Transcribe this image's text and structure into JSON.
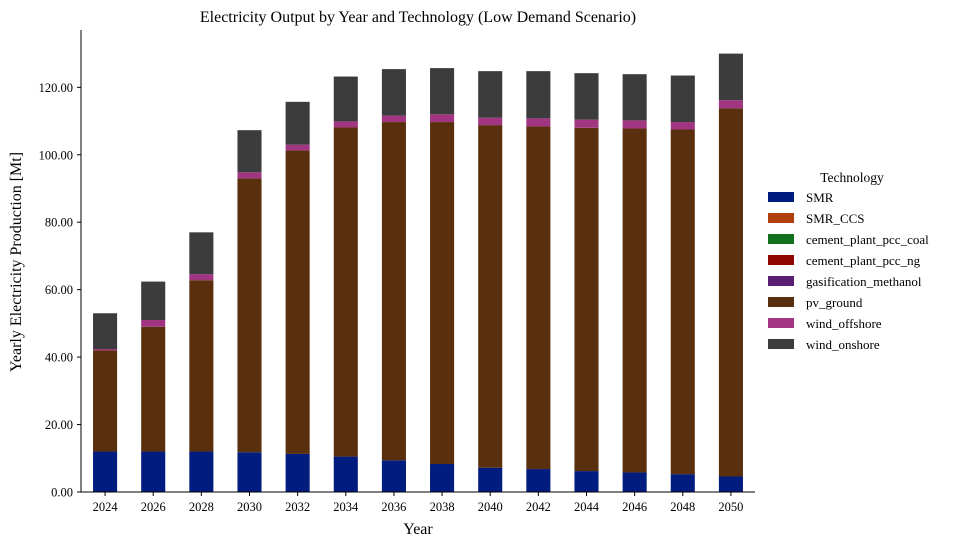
{
  "chart_data": {
    "type": "bar",
    "stacked": true,
    "title": "Electricity Output by Year and Technology (Low Demand Scenario)",
    "xlabel": "Year",
    "ylabel": "Yearly Electricity Production [Mt]",
    "ylim": [
      0,
      137
    ],
    "yticks": [
      "0.00",
      "20.00",
      "40.00",
      "60.00",
      "80.00",
      "100.00",
      "120.00"
    ],
    "ytick_values": [
      0,
      20,
      40,
      60,
      80,
      100,
      120
    ],
    "legend_title": "Technology",
    "legend_position": "right",
    "grid": false,
    "categories": [
      "2024",
      "2026",
      "2028",
      "2030",
      "2032",
      "2034",
      "2036",
      "2038",
      "2040",
      "2042",
      "2044",
      "2046",
      "2048",
      "2050"
    ],
    "series": [
      {
        "name": "SMR",
        "color": "#001c7f",
        "values": [
          12.0,
          12.0,
          12.0,
          11.8,
          11.3,
          10.5,
          9.4,
          8.3,
          7.2,
          6.8,
          6.2,
          5.8,
          5.3,
          4.6
        ]
      },
      {
        "name": "SMR_CCS",
        "color": "#b1400d",
        "values": [
          0,
          0,
          0,
          0,
          0,
          0,
          0,
          0,
          0,
          0,
          0,
          0,
          0,
          0
        ]
      },
      {
        "name": "cement_plant_pcc_coal",
        "color": "#12711c",
        "values": [
          0,
          0,
          0,
          0,
          0,
          0,
          0,
          0,
          0,
          0,
          0,
          0,
          0,
          0
        ]
      },
      {
        "name": "cement_plant_pcc_ng",
        "color": "#8c0800",
        "values": [
          0,
          0,
          0,
          0,
          0,
          0,
          0,
          0,
          0,
          0,
          0,
          0,
          0,
          0
        ]
      },
      {
        "name": "gasification_methanol",
        "color": "#591e71",
        "values": [
          0,
          0,
          0,
          0,
          0,
          0,
          0,
          0,
          0,
          0,
          0,
          0,
          0,
          0
        ]
      },
      {
        "name": "pv_ground",
        "color": "#592f0d",
        "values": [
          30.0,
          37.0,
          50.8,
          81.2,
          90.0,
          97.6,
          100.3,
          101.4,
          101.6,
          101.6,
          101.8,
          102.0,
          102.2,
          109.2
        ]
      },
      {
        "name": "wind_offshore",
        "color": "#a23582",
        "values": [
          0.4,
          2.0,
          1.8,
          1.8,
          1.7,
          1.8,
          1.9,
          2.3,
          2.2,
          2.4,
          2.4,
          2.4,
          2.2,
          2.4
        ]
      },
      {
        "name": "wind_onshore",
        "color": "#3c3c3c",
        "values": [
          10.6,
          11.4,
          12.4,
          12.5,
          12.7,
          13.3,
          13.8,
          13.7,
          13.8,
          14.0,
          13.8,
          13.7,
          13.8,
          13.8
        ]
      }
    ]
  }
}
